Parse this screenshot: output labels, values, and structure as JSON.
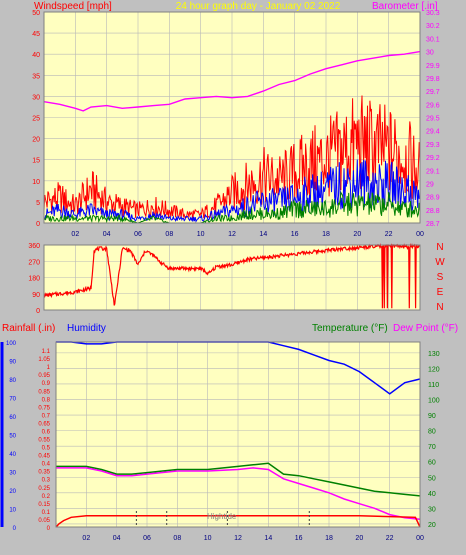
{
  "colors": {
    "background": "#c0c0c0",
    "plot_bg": "#ffffc0",
    "grid": "#b8b8b8",
    "wind_avg": "#008000",
    "wind_mid": "#0000ff",
    "wind_gust": "#ff0000",
    "barometer": "#ff00ff",
    "direction": "#ff0000",
    "humidity": "#0000ff",
    "temperature": "#008000",
    "dew_point": "#ff00ff",
    "rainfall": "#ff0000",
    "title_text": "#ffff00"
  },
  "top_panel": {
    "title": "24 hour graph day - January 02 2022",
    "left_label": "Windspeed [mph]",
    "right_label": "Barometer [.in]"
  },
  "direction_panel": {
    "compass_labels": [
      "N",
      "W",
      "S",
      "E",
      "N"
    ]
  },
  "bottom_panel": {
    "rainfall_label": "Rainfall (.in)",
    "humidity_label": "Humidity",
    "temperature_label": "Temperature (°F)",
    "dewpoint_label": "Dew Point (°F)",
    "annotation": "Hightide"
  },
  "chart_data": [
    {
      "type": "line",
      "title": "24 hour graph day - January 02 2022",
      "xlabel": "",
      "x_ticks": [
        "02",
        "04",
        "06",
        "08",
        "10",
        "12",
        "14",
        "16",
        "18",
        "20",
        "22",
        "00"
      ],
      "xlim": [
        0,
        24
      ],
      "y_left": {
        "label": "Windspeed [mph]",
        "lim": [
          0,
          50
        ],
        "ticks": [
          0,
          5,
          10,
          15,
          20,
          25,
          30,
          35,
          40,
          45,
          50
        ]
      },
      "y_right": {
        "label": "Barometer [.in]",
        "lim": [
          28.7,
          30.3
        ],
        "ticks": [
          "28.7",
          "28.8",
          "28.9",
          "29",
          "29.1",
          "29.2",
          "29.3",
          "29.4",
          "29.5",
          "29.6",
          "29.7",
          "29.8",
          "29.9",
          "30",
          "30.1",
          "30.2",
          "30.3"
        ]
      },
      "series": [
        {
          "name": "Barometer",
          "axis": "right",
          "x": [
            0,
            1,
            2,
            2.5,
            3,
            4,
            5,
            6,
            7,
            8,
            9,
            10,
            11,
            12,
            13,
            14,
            15,
            16,
            17,
            18,
            19,
            20,
            21,
            22,
            23,
            24
          ],
          "values": [
            29.62,
            29.6,
            29.57,
            29.55,
            29.58,
            29.59,
            29.57,
            29.58,
            29.59,
            29.6,
            29.64,
            29.65,
            29.66,
            29.65,
            29.66,
            29.7,
            29.75,
            29.78,
            29.83,
            29.87,
            29.9,
            29.93,
            29.95,
            29.97,
            29.98,
            30.0
          ]
        },
        {
          "name": "Wind gust",
          "axis": "left",
          "x": [
            0,
            1,
            2,
            3,
            4,
            5,
            6,
            7,
            8,
            9,
            10,
            11,
            12,
            13,
            14,
            15,
            16,
            17,
            18,
            19,
            20,
            21,
            22,
            23,
            24
          ],
          "values": [
            5,
            6,
            4,
            8,
            5,
            4,
            3,
            4,
            3,
            2,
            2,
            4,
            7,
            9,
            11,
            10,
            12,
            14,
            15,
            17,
            19,
            18,
            17,
            16,
            12
          ]
        },
        {
          "name": "Wind mid",
          "axis": "left",
          "x": [
            0,
            1,
            2,
            3,
            4,
            5,
            6,
            7,
            8,
            9,
            10,
            11,
            12,
            13,
            14,
            15,
            16,
            17,
            18,
            19,
            20,
            21,
            22,
            23,
            24
          ],
          "values": [
            2,
            3,
            2,
            3,
            2,
            2,
            1,
            2,
            1,
            1,
            1,
            2,
            3,
            4,
            5,
            5,
            6,
            7,
            8,
            9,
            10,
            9,
            9,
            8,
            6
          ]
        },
        {
          "name": "Wind average",
          "axis": "left",
          "x": [
            0,
            1,
            2,
            3,
            4,
            5,
            6,
            7,
            8,
            9,
            10,
            11,
            12,
            13,
            14,
            15,
            16,
            17,
            18,
            19,
            20,
            21,
            22,
            23,
            24
          ],
          "values": [
            1,
            1,
            1,
            1,
            1,
            1,
            0,
            1,
            0,
            0,
            0,
            1,
            1,
            2,
            2,
            2,
            3,
            3,
            3,
            4,
            4,
            4,
            4,
            3,
            3
          ]
        }
      ]
    },
    {
      "type": "line",
      "title": "",
      "xlim": [
        0,
        24
      ],
      "y_left": {
        "lim": [
          0,
          360
        ],
        "ticks": [
          0,
          90,
          180,
          270,
          360
        ]
      },
      "y_right_labels": [
        "N",
        "W",
        "S",
        "E",
        "N"
      ],
      "series": [
        {
          "name": "Wind direction",
          "x": [
            0,
            1,
            2,
            3,
            3.2,
            3.5,
            4,
            4.5,
            5,
            5.5,
            6,
            6.5,
            7,
            7.5,
            8,
            9,
            10,
            10.5,
            11,
            12,
            13,
            14,
            15,
            16,
            17,
            18,
            19,
            20,
            21,
            22,
            23,
            24
          ],
          "values": [
            80,
            90,
            100,
            120,
            330,
            340,
            340,
            20,
            340,
            330,
            250,
            330,
            300,
            260,
            230,
            230,
            230,
            200,
            240,
            250,
            280,
            290,
            300,
            310,
            320,
            330,
            340,
            345,
            350,
            355,
            350,
            355
          ]
        }
      ]
    },
    {
      "type": "line",
      "title": "",
      "xlim": [
        0,
        24
      ],
      "x_ticks": [
        "02",
        "04",
        "06",
        "08",
        "10",
        "12",
        "14",
        "16",
        "18",
        "20",
        "22",
        "00"
      ],
      "y_far_left": {
        "label": "Humidity",
        "lim": [
          0,
          100
        ],
        "ticks": [
          0,
          10,
          20,
          30,
          40,
          50,
          60,
          70,
          80,
          90,
          100
        ]
      },
      "y_left": {
        "label": "Rainfall (.in)",
        "lim": [
          0,
          1.15
        ],
        "ticks": [
          "0",
          "0.05",
          "0.1",
          "0.15",
          "0.2",
          "0.25",
          "0.3",
          "0.35",
          "0.4",
          "0.45",
          "0.5",
          "0.55",
          "0.6",
          "0.65",
          "0.7",
          "0.75",
          "0.8",
          "0.85",
          "0.9",
          "0.95",
          "1",
          "1.05",
          "1.1"
        ]
      },
      "y_right": {
        "label": "Temperature (°F)",
        "lim": [
          18,
          137
        ],
        "ticks": [
          20,
          30,
          40,
          50,
          60,
          70,
          80,
          90,
          100,
          110,
          120,
          130
        ]
      },
      "series": [
        {
          "name": "Humidity",
          "axis": "far_left",
          "x": [
            0,
            1,
            2,
            3,
            4,
            6,
            8,
            10,
            12,
            14,
            15,
            16,
            17,
            18,
            19,
            20,
            21,
            22,
            23,
            24
          ],
          "values": [
            100,
            100,
            99,
            99,
            100,
            100,
            100,
            100,
            100,
            100,
            98,
            96,
            93,
            90,
            88,
            84,
            78,
            72,
            78,
            80
          ]
        },
        {
          "name": "Temperature",
          "axis": "right",
          "x": [
            0,
            1,
            2,
            3,
            4,
            5,
            6,
            8,
            10,
            12,
            13,
            14,
            15,
            16,
            17,
            18,
            19,
            20,
            21,
            22,
            23,
            24
          ],
          "values": [
            57,
            57,
            57,
            55,
            52,
            52,
            53,
            55,
            55,
            57,
            58,
            59,
            52,
            51,
            49,
            47,
            45,
            43,
            41,
            40,
            39,
            38
          ]
        },
        {
          "name": "Dew Point",
          "axis": "right",
          "x": [
            0,
            1,
            2,
            3,
            4,
            5,
            6,
            8,
            10,
            12,
            13,
            14,
            15,
            16,
            17,
            18,
            19,
            20,
            21,
            22,
            23,
            24
          ],
          "values": [
            56,
            56,
            56,
            54,
            51,
            51,
            52,
            54,
            54,
            55,
            56,
            55,
            49,
            46,
            43,
            40,
            36,
            33,
            30,
            26,
            24,
            23
          ]
        },
        {
          "name": "Rainfall",
          "axis": "left",
          "x": [
            0,
            0.2,
            0.5,
            1,
            2,
            4,
            8,
            12,
            16,
            20,
            23.7,
            24
          ],
          "values": [
            0,
            0.02,
            0.04,
            0.06,
            0.07,
            0.07,
            0.07,
            0.07,
            0.07,
            0.07,
            0.06,
            0
          ]
        }
      ]
    }
  ]
}
